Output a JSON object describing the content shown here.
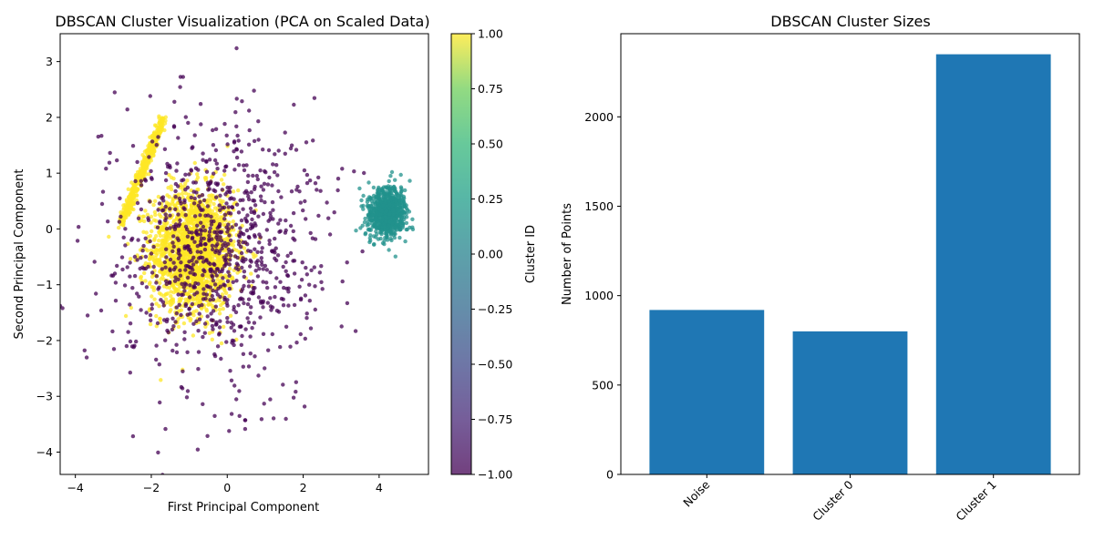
{
  "colors": {
    "noise": "#440154",
    "cluster0": "#21918c",
    "cluster1": "#fde725",
    "bar": "#1f77b4"
  },
  "chart_data": [
    {
      "type": "scatter",
      "title": "DBSCAN Cluster Visualization (PCA on Scaled Data)",
      "xlabel": "First Principal Component",
      "ylabel": "Second Principal Component",
      "xlim": [
        -4.4,
        5.3
      ],
      "ylim": [
        -4.4,
        3.5
      ],
      "xticks": [
        -4,
        -2,
        0,
        2,
        4
      ],
      "yticks": [
        -4,
        -3,
        -2,
        -1,
        0,
        1,
        2,
        3
      ],
      "grid": false,
      "colorbar": {
        "label": "Cluster ID",
        "colormap": "viridis",
        "range": [
          -1.0,
          1.0
        ],
        "ticks": [
          "-1.00",
          "-0.75",
          "-0.50",
          "-0.25",
          "0.00",
          "0.25",
          "0.50",
          "0.75",
          "1.00"
        ]
      },
      "series": [
        {
          "cluster_id": -1,
          "count": 920,
          "distribution": "broad gaussian",
          "center": [
            -0.3,
            -0.4
          ],
          "spread": [
            1.3,
            1.2
          ]
        },
        {
          "cluster_id": 0,
          "count": 800,
          "distribution": "compact blob",
          "center": [
            4.2,
            0.3
          ],
          "spread": [
            0.25,
            0.22
          ]
        },
        {
          "cluster_id": 1,
          "count": 2350,
          "distribution": "dense core with diagonal streak",
          "center": [
            -0.9,
            -0.4
          ],
          "spread": [
            0.55,
            0.55
          ]
        }
      ]
    },
    {
      "type": "bar",
      "title": "DBSCAN Cluster Sizes",
      "xlabel": "",
      "ylabel": "Number of Points",
      "categories": [
        "Noise",
        "Cluster 0",
        "Cluster 1"
      ],
      "values": [
        920,
        800,
        2350
      ],
      "ylim": [
        0,
        2465
      ],
      "yticks": [
        0,
        500,
        1000,
        1500,
        2000
      ],
      "grid": false
    }
  ]
}
